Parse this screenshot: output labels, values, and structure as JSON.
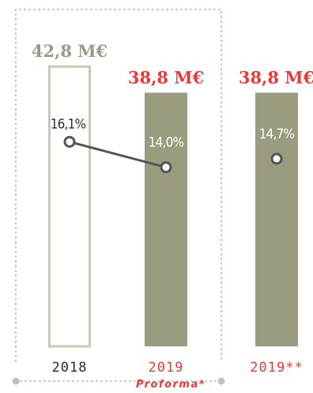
{
  "colors": {
    "outline": "#c9c9b6",
    "bar_fill": "#9b9b80",
    "accent_red": "#e63b3b",
    "dots": "#c2c2b3",
    "line": "#555555",
    "text_dark": "#2b2b2b",
    "text_grey": "#9a9a86"
  },
  "chart_data": {
    "type": "bar",
    "categories": [
      "2018",
      "2019",
      "2019**"
    ],
    "category_sublabels": [
      "",
      "Proforma*",
      ""
    ],
    "values": [
      42.8,
      38.8,
      38.8
    ],
    "value_labels": [
      "42,8 M€",
      "38,8 M€",
      "38,8 M€"
    ],
    "bar_styles": [
      "outline",
      "filled",
      "filled"
    ],
    "value_label_colors": [
      "text_grey",
      "accent_red",
      "accent_red"
    ],
    "category_label_colors": [
      "text_dark",
      "accent_red",
      "accent_red"
    ],
    "rate_series": {
      "values": [
        16.1,
        14.0,
        14.7
      ],
      "labels": [
        "16,1%",
        "14,0%",
        "14,7%"
      ],
      "connected": [
        true,
        true,
        false
      ]
    },
    "ylim": [
      0,
      45
    ],
    "rate_ylim": [
      0,
      25
    ],
    "title": "",
    "xlabel": "",
    "ylabel": "",
    "grid": false,
    "legend": "none"
  }
}
